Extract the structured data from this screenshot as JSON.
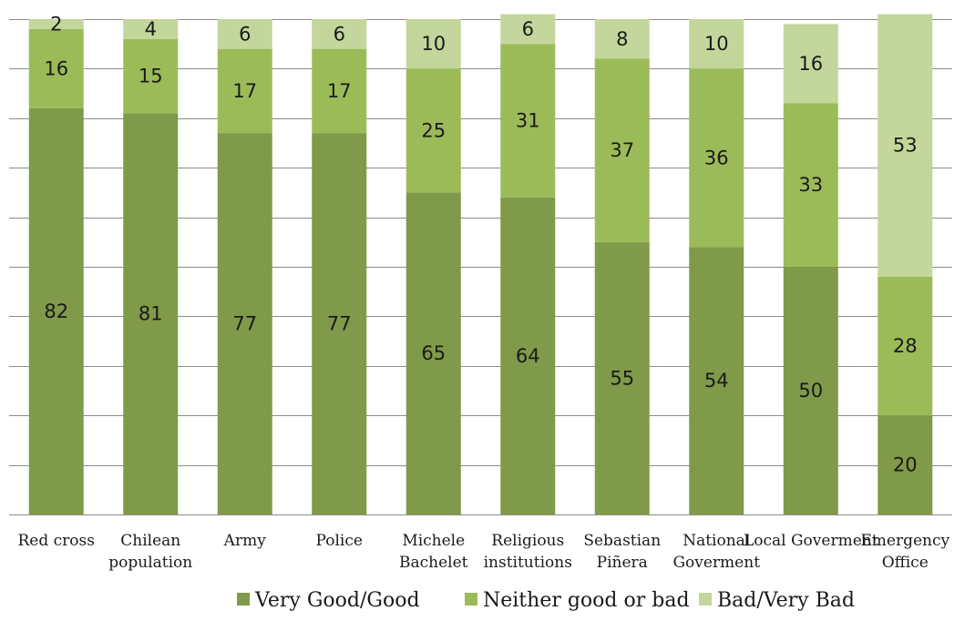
{
  "chart_data": {
    "type": "bar",
    "stacked": true,
    "categories": [
      [
        "Red cross"
      ],
      [
        "Chilean",
        "population"
      ],
      [
        "Army"
      ],
      [
        "Police"
      ],
      [
        "Michele",
        "Bachelet"
      ],
      [
        "Religious",
        "institutions"
      ],
      [
        "Sebastian",
        "Piñera"
      ],
      [
        "National",
        "Goverment"
      ],
      [
        "Local Goverment"
      ],
      [
        "Emergency",
        "Office"
      ]
    ],
    "series": [
      {
        "name": "Very Good/Good",
        "color": "#7f9a48",
        "values": [
          82,
          81,
          77,
          77,
          65,
          64,
          55,
          54,
          50,
          20
        ]
      },
      {
        "name": "Neither good or bad",
        "color": "#9bbb59",
        "values": [
          16,
          15,
          17,
          17,
          25,
          31,
          37,
          36,
          33,
          28
        ]
      },
      {
        "name": "Bad/Very Bad",
        "color": "#c3d69b",
        "values": [
          2,
          4,
          6,
          6,
          10,
          6,
          8,
          10,
          16,
          53
        ]
      }
    ],
    "ylim": [
      0,
      100
    ],
    "grid": true,
    "legend": "bottom",
    "xlabel": "",
    "ylabel": "",
    "title": ""
  }
}
